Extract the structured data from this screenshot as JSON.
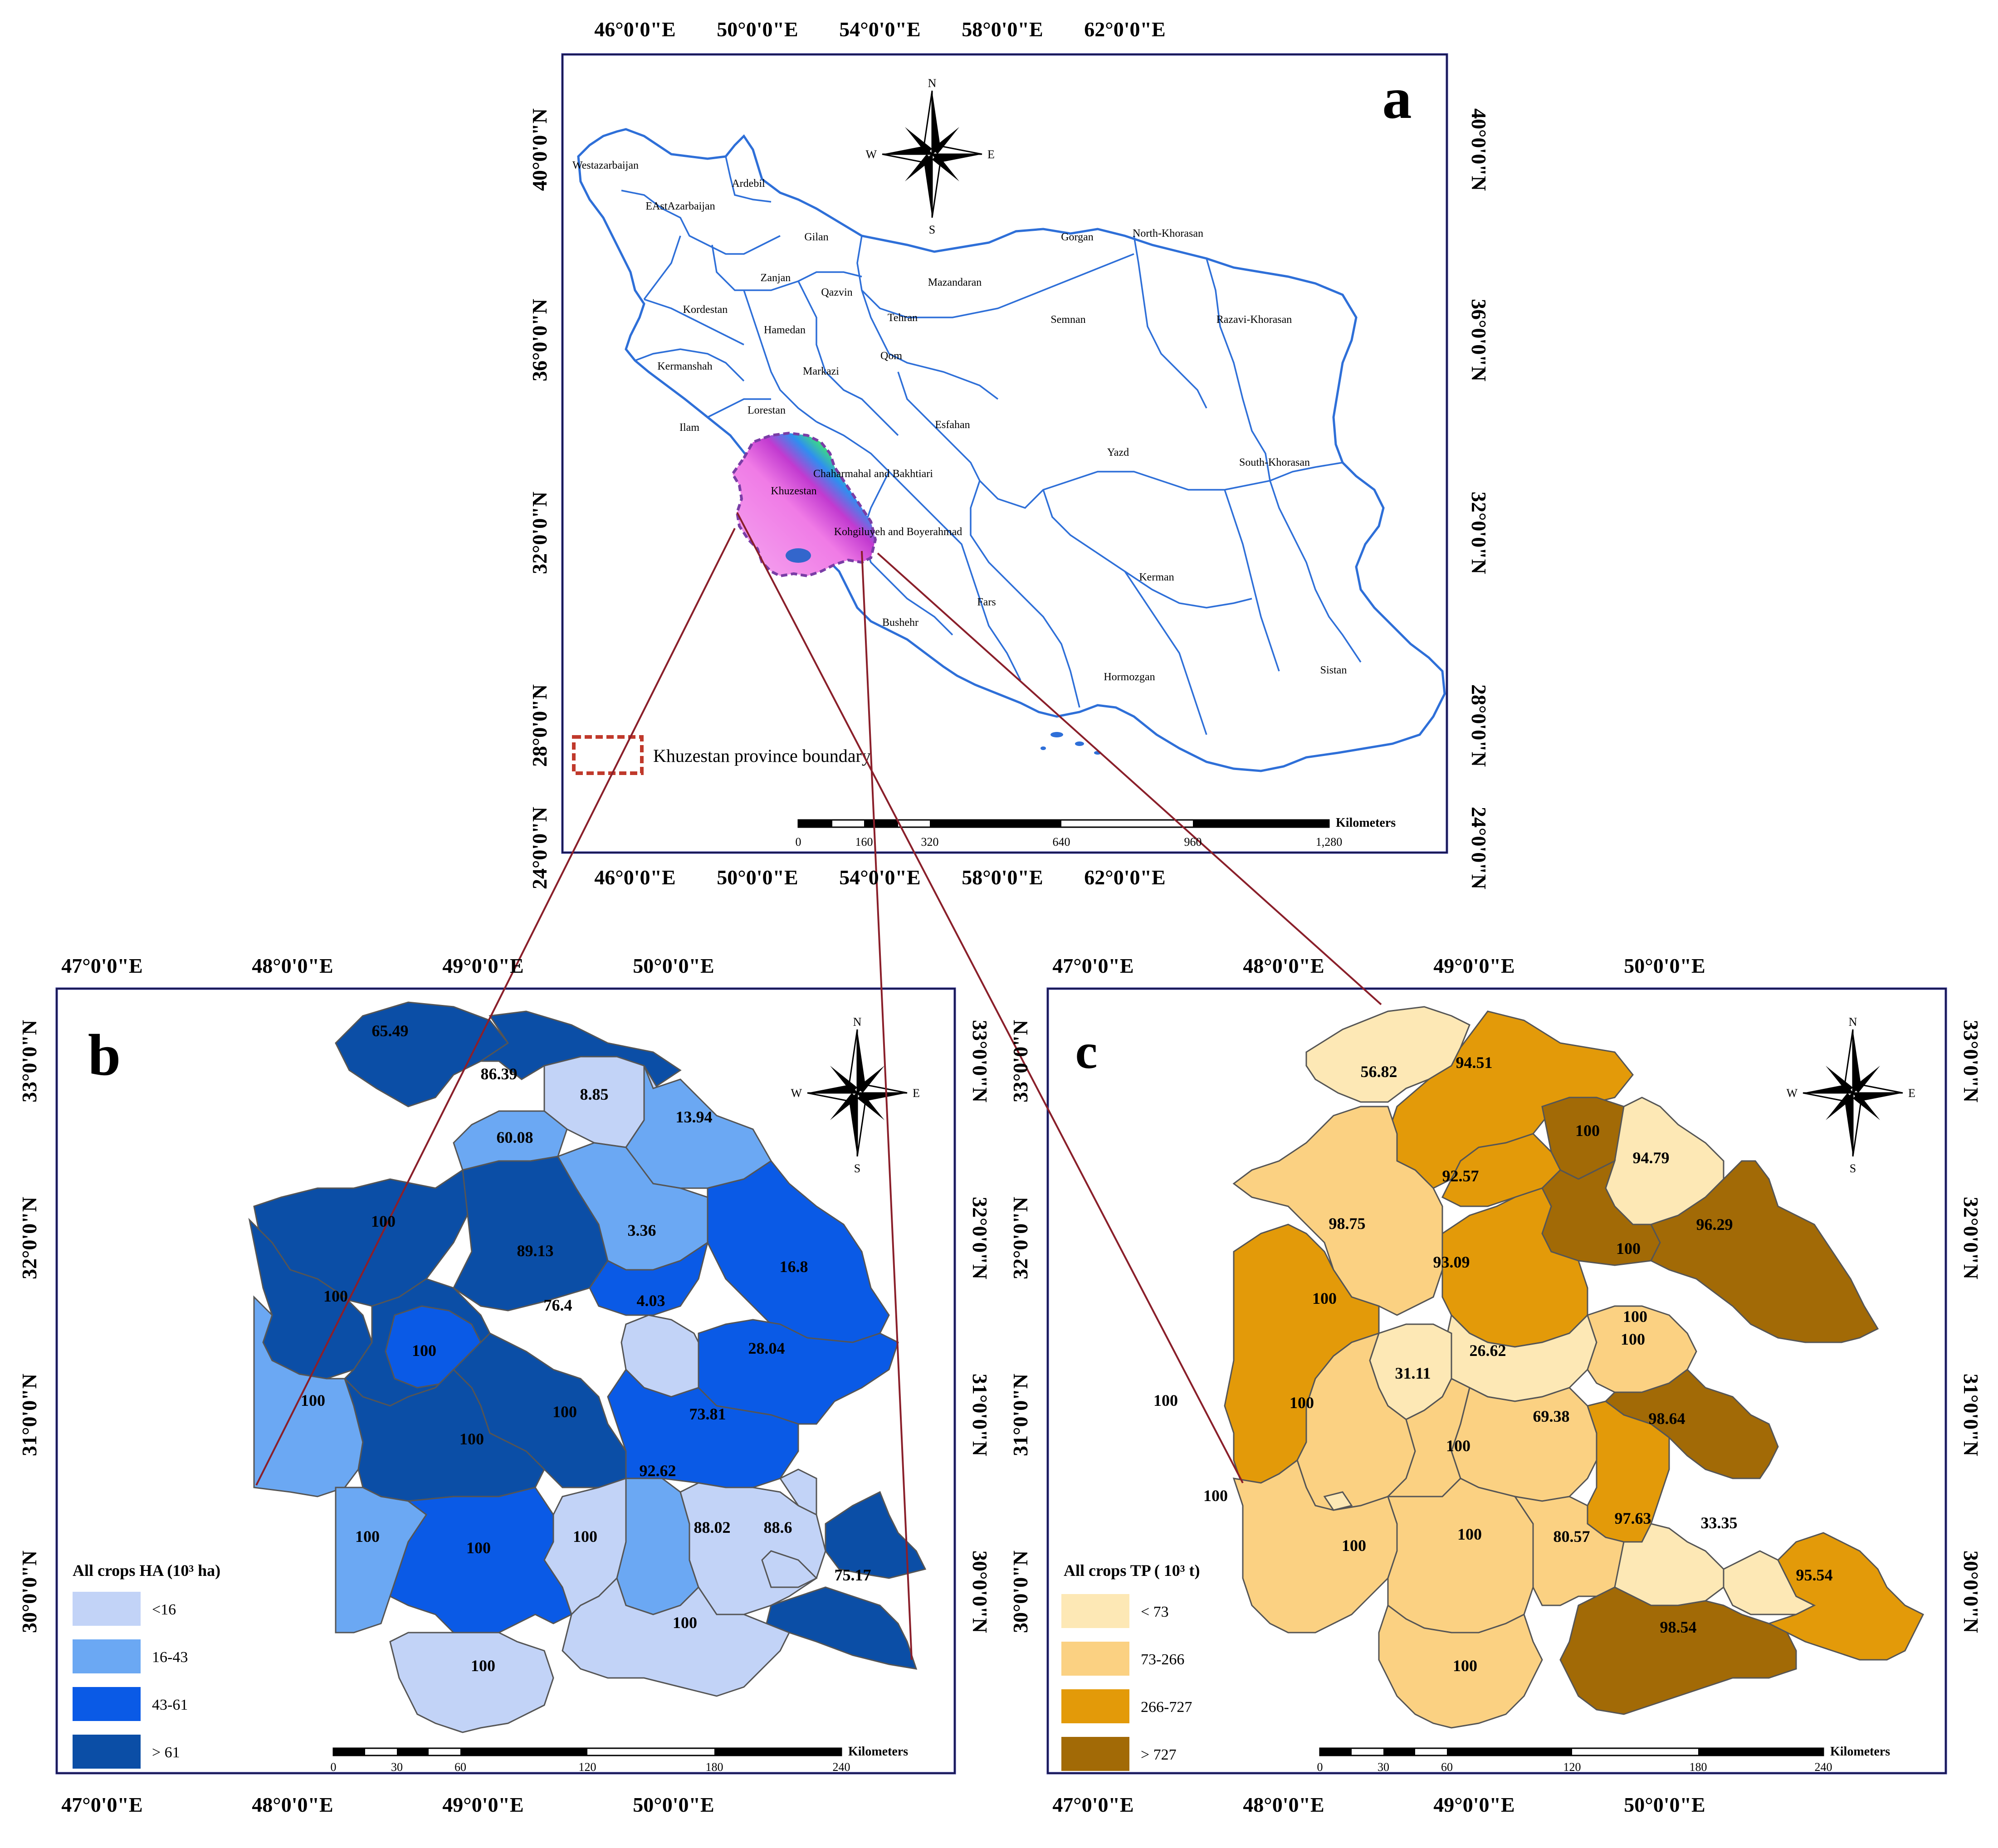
{
  "panel_a": {
    "letter": "a",
    "lon_labels": [
      "46°0'0\"E",
      "50°0'0\"E",
      "54°0'0\"E",
      "58°0'0\"E",
      "62°0'0\"E"
    ],
    "lat_labels": [
      "40°0'0\"N",
      "36°0'0\"N",
      "32°0'0\"N",
      "28°0'0\"N",
      "24°0'0\"N"
    ],
    "provinces": [
      "Westazarbaijan",
      "Ardebil",
      "EAstAzarbaijan",
      "Gilan",
      "Gorgan",
      "North-Khorasan",
      "Zanjan",
      "Mazandaran",
      "Qazvin",
      "Tehran",
      "Kordestan",
      "Semnan",
      "Razavi-Khorasan",
      "Hamedan",
      "Qom",
      "Kermanshah",
      "Markazi",
      "Lorestan",
      "Esfahan",
      "Ilam",
      "Chaharmahal and Bakhtiari",
      "Yazd",
      "South-Khorasan",
      "Khuzestan",
      "Kohgiluyeh and Boyerahmad",
      "Fars",
      "Kerman",
      "Bushehr",
      "Hormozgan",
      "Sistan"
    ],
    "legend_label": "Khuzestan province boundary",
    "scale": {
      "ticks": [
        "0",
        "160",
        "320",
        "640",
        "960",
        "1,280"
      ],
      "unit": "Kilometers"
    },
    "compass": {
      "n": "N",
      "s": "S",
      "e": "E",
      "w": "W"
    }
  },
  "panel_b": {
    "letter": "b",
    "lon_labels": [
      "47°0'0\"E",
      "48°0'0\"E",
      "49°0'0\"E",
      "50°0'0\"E"
    ],
    "lat_labels": [
      "33°0'0\"N",
      "32°0'0\"N",
      "31°0'0\"N",
      "30°0'0\"N"
    ],
    "legend_title": "All crops HA (10³ ha)",
    "legend": [
      {
        "label": "<16",
        "color": "#c2d3f7"
      },
      {
        "label": "16-43",
        "color": "#6ba8f3"
      },
      {
        "label": "43-61",
        "color": "#0a5ae6"
      },
      {
        "label": "> 61",
        "color": "#0b4ea6"
      }
    ],
    "values": [
      "65.49",
      "86.39",
      "8.85",
      "13.94",
      "60.08",
      "100",
      "89.13",
      "3.36",
      "16.8",
      "100",
      "76.4",
      "4.03",
      "28.04",
      "100",
      "100",
      "100",
      "73.81",
      "100",
      "92.62",
      "88.02",
      "88.6",
      "100",
      "100",
      "100",
      "75.17",
      "100",
      "100"
    ],
    "scale": {
      "ticks": [
        "0",
        "30",
        "60",
        "120",
        "180",
        "240"
      ],
      "unit": "Kilometers"
    },
    "compass": {
      "n": "N",
      "s": "S",
      "e": "E",
      "w": "W"
    }
  },
  "panel_c": {
    "letter": "c",
    "lon_labels": [
      "47°0'0\"E",
      "48°0'0\"E",
      "49°0'0\"E",
      "50°0'0\"E"
    ],
    "lat_labels": [
      "33°0'0\"N",
      "32°0'0\"N",
      "31°0'0\"N",
      "30°0'0\"N"
    ],
    "legend_title": "All crops TP ( 10³ t)",
    "legend": [
      {
        "label": "< 73",
        "color": "#fde8b5"
      },
      {
        "label": "73-266",
        "color": "#fbd182"
      },
      {
        "label": "266-727",
        "color": "#e39a09"
      },
      {
        "label": "> 727",
        "color": "#a26a06"
      }
    ],
    "values": [
      "56.82",
      "94.51",
      "100",
      "94.79",
      "92.57",
      "98.75",
      "100",
      "96.29",
      "93.09",
      "100",
      "100",
      "26.62",
      "100",
      "31.11",
      "100",
      "69.38",
      "98.64",
      "100",
      "100",
      "100",
      "97.63",
      "33.35",
      "100",
      "100",
      "80.57",
      "95.54",
      "98.54",
      "100"
    ],
    "scale": {
      "ticks": [
        "0",
        "30",
        "60",
        "120",
        "180",
        "240"
      ],
      "unit": "Kilometers"
    },
    "compass": {
      "n": "N",
      "s": "S",
      "e": "E",
      "w": "W"
    }
  }
}
